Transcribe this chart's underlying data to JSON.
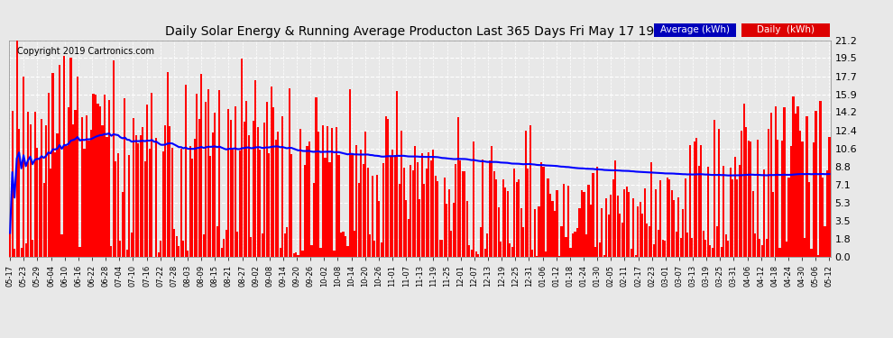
{
  "title": "Daily Solar Energy & Running Average Producton Last 365 Days Fri May 17 19:32",
  "copyright": "Copyright 2019 Cartronics.com",
  "bar_color": "#ff0000",
  "avg_line_color": "#0000ff",
  "background_color": "#e8e8e8",
  "plot_bg_color": "#e8e8e8",
  "grid_color": "#ffffff",
  "yticks": [
    0.0,
    1.8,
    3.5,
    5.3,
    7.1,
    8.8,
    10.6,
    12.4,
    14.2,
    15.9,
    17.7,
    19.5,
    21.2
  ],
  "ylim": [
    0.0,
    21.2
  ],
  "legend_avg_color": "#0000bb",
  "legend_daily_color": "#dd0000",
  "legend_avg_text": "Average (kWh)",
  "legend_daily_text": "Daily  (kWh)",
  "x_tick_labels": [
    "05-17",
    "05-23",
    "05-29",
    "06-04",
    "06-10",
    "06-16",
    "06-22",
    "06-28",
    "07-04",
    "07-10",
    "07-16",
    "07-22",
    "07-28",
    "08-03",
    "08-09",
    "08-15",
    "08-21",
    "08-27",
    "09-02",
    "09-08",
    "09-14",
    "09-20",
    "09-26",
    "10-02",
    "10-08",
    "10-14",
    "10-20",
    "10-26",
    "11-01",
    "11-07",
    "11-13",
    "11-19",
    "11-25",
    "12-01",
    "12-07",
    "12-13",
    "12-19",
    "12-25",
    "12-31",
    "01-06",
    "01-12",
    "01-18",
    "01-24",
    "01-30",
    "02-05",
    "02-11",
    "02-17",
    "02-23",
    "03-01",
    "03-07",
    "03-13",
    "03-19",
    "03-25",
    "03-31",
    "04-06",
    "04-12",
    "04-18",
    "04-24",
    "04-30",
    "05-06",
    "05-12"
  ],
  "n_days": 365
}
